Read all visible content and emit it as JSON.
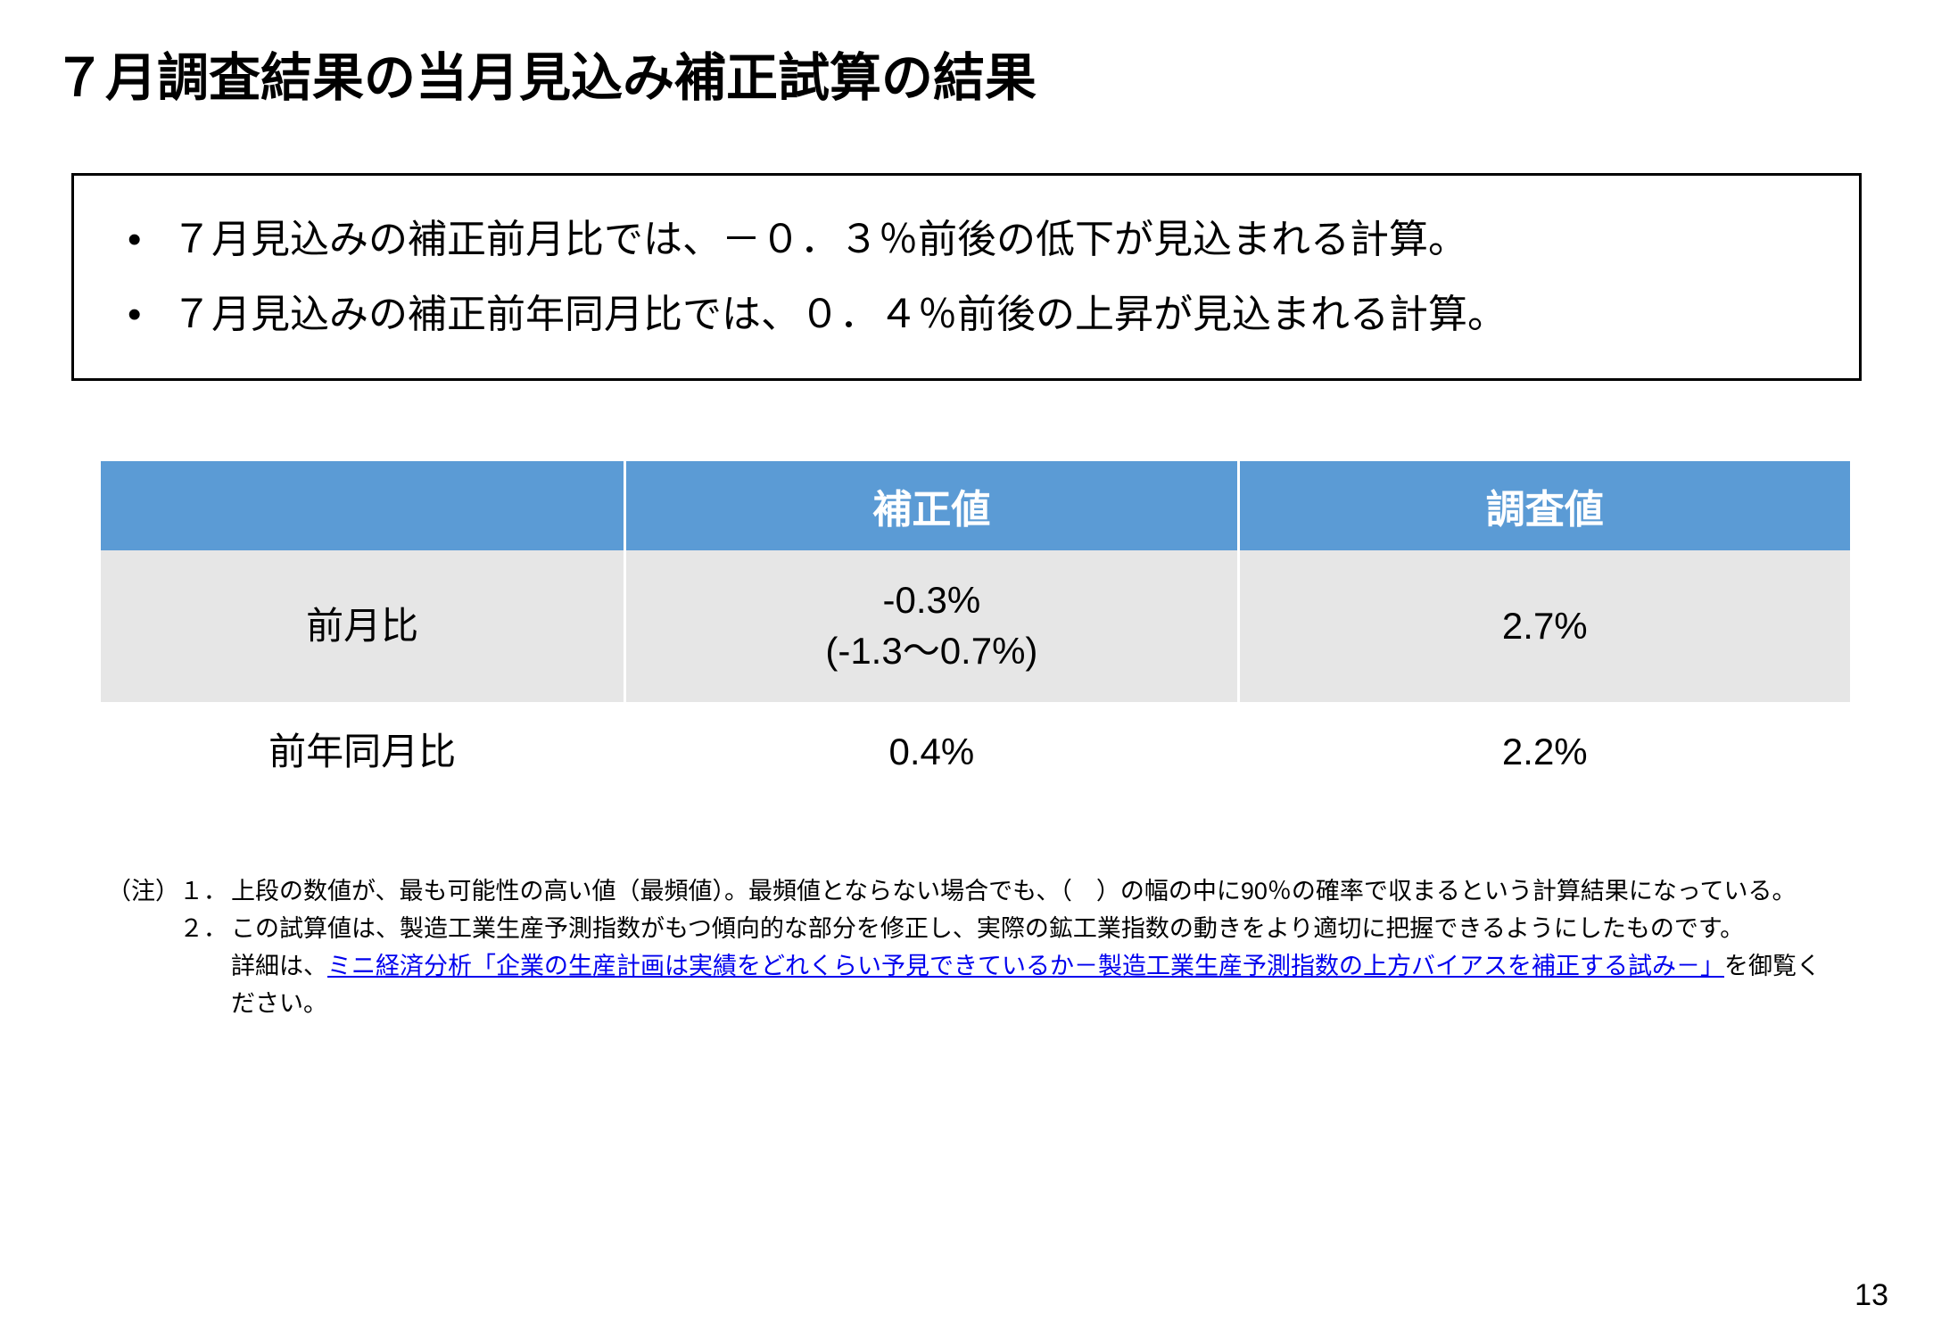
{
  "title": "７月調査結果の当月見込み補正試算の結果",
  "bullets": [
    "７月見込みの補正前月比では、－０．３％前後の低下が見込まれる計算。",
    "７月見込みの補正前年同月比では、０．４％前後の上昇が見込まれる計算。"
  ],
  "table": {
    "header_bg": "#5b9bd5",
    "row_alt_bg": "#e6e6e6",
    "row_bg": "#ffffff",
    "columns": [
      "",
      "補正値",
      "調査値"
    ],
    "rows": [
      {
        "label": "前月比",
        "corrected_main": "-0.3%",
        "corrected_range": "(-1.3～0.7%)",
        "survey": "2.7%"
      },
      {
        "label": "前年同月比",
        "corrected_main": "0.4%",
        "corrected_range": "",
        "survey": "2.2%"
      }
    ]
  },
  "notes": {
    "prefix": "（注）",
    "items": [
      {
        "num": "１．",
        "text": "上段の数値が、最も可能性の高い値（最頻値）。最頻値とならない場合でも、（　）の幅の中に90％の確率で収まるという計算結果になっている。"
      },
      {
        "num": "２．",
        "text_before": "この試算値は、製造工業生産予測指数がもつ傾向的な部分を修正し、実際の鉱工業指数の動きをより適切に把握できるようにしたものです。\n詳細は、",
        "link_text": "ミニ経済分析「企業の生産計画は実績をどれくらい予見できているか－製造工業生産予測指数の上方バイアスを補正する試み－」",
        "text_after": "を御覧ください。"
      }
    ]
  },
  "page_number": "13"
}
